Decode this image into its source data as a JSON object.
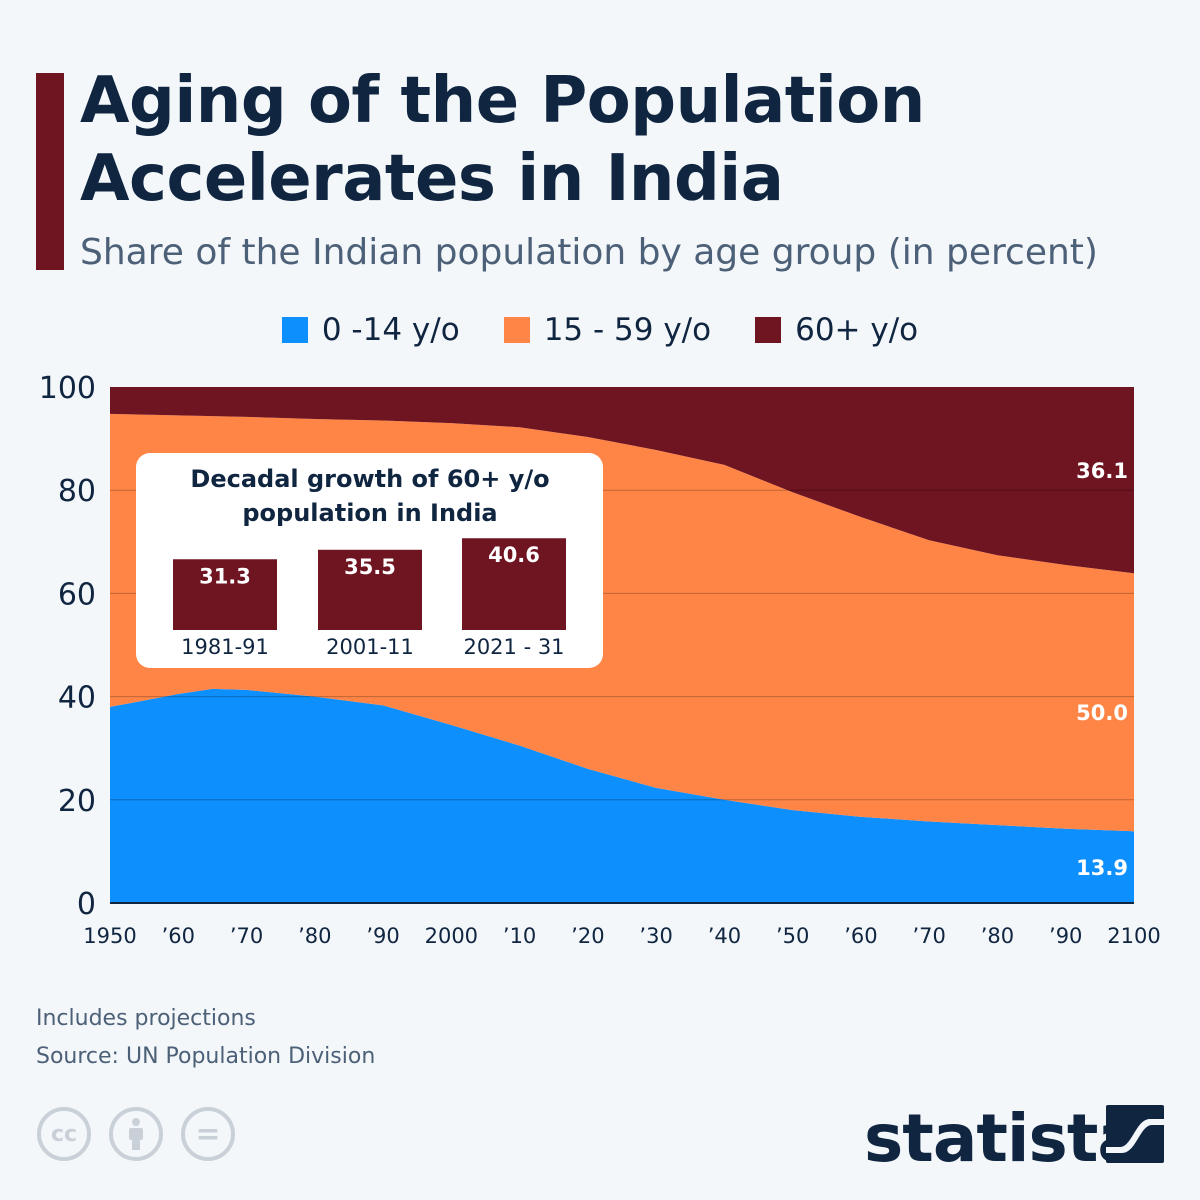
{
  "header": {
    "title": "Aging of the Population Accelerates in India",
    "subtitle": "Share of the Indian population by age group (in percent)"
  },
  "legend": [
    {
      "label": "0 -14 y/o",
      "color": "#0d8ffd"
    },
    {
      "label": "15 - 59 y/o",
      "color": "#ff8547"
    },
    {
      "label": "60+ y/o",
      "color": "#6f1421"
    }
  ],
  "chart_data": {
    "type": "area",
    "stacked": true,
    "title": "Aging of the Population Accelerates in India",
    "subtitle": "Share of the Indian population by age group (in percent)",
    "x": [
      1950,
      1960,
      1965,
      1970,
      1980,
      1990,
      2000,
      2010,
      2020,
      2030,
      2040,
      2050,
      2060,
      2070,
      2080,
      2090,
      2100
    ],
    "x_tick_values": [
      1950,
      1960,
      1970,
      1980,
      1990,
      2000,
      2010,
      2020,
      2030,
      2040,
      2050,
      2060,
      2070,
      2080,
      2090,
      2100
    ],
    "x_tick_labels": [
      "1950",
      "’60",
      "’70",
      "’80",
      "’90",
      "2000",
      "’10",
      "’20",
      "’30",
      "’40",
      "’50",
      "’60",
      "’70",
      "’80",
      "’90",
      "2100"
    ],
    "y_ticks": [
      0,
      20,
      40,
      60,
      80,
      100
    ],
    "ylim": [
      0,
      100
    ],
    "grid": true,
    "legend_position": "top",
    "series": [
      {
        "name": "0 -14 y/o",
        "color": "#0d8ffd",
        "values": [
          38.0,
          40.5,
          41.5,
          41.3,
          40.0,
          38.3,
          34.5,
          30.5,
          26.0,
          22.3,
          20.0,
          18.0,
          16.7,
          15.8,
          15.1,
          14.4,
          13.9
        ]
      },
      {
        "name": "15 - 59 y/o",
        "color": "#ff8547",
        "values": [
          56.8,
          54.0,
          52.85,
          52.9,
          53.8,
          55.2,
          58.5,
          61.7,
          64.3,
          65.5,
          64.9,
          61.6,
          58.1,
          54.5,
          52.3,
          51.1,
          50.0
        ]
      },
      {
        "name": "60+ y/o",
        "color": "#6f1421",
        "values": [
          5.2,
          5.5,
          5.65,
          5.8,
          6.2,
          6.5,
          7.0,
          7.8,
          9.7,
          12.2,
          15.1,
          20.4,
          25.2,
          29.7,
          32.6,
          34.5,
          36.1
        ]
      }
    ],
    "end_labels": [
      "13.9",
      "50.0",
      "36.1"
    ],
    "inset": {
      "type": "bar",
      "title": "Decadal growth of 60+ y/o population in India",
      "categories": [
        "1981-91",
        "2001-11",
        "2021 - 31"
      ],
      "values": [
        31.3,
        35.5,
        40.6
      ],
      "labels": [
        "31.3",
        "35.5",
        "40.6"
      ],
      "color": "#6f1421"
    }
  },
  "footer": {
    "note": "Includes projections",
    "source": "Source: UN Population Division",
    "cc_icons": [
      "cc-icon",
      "attribution-icon",
      "no-derivatives-icon"
    ],
    "cc_glyphs": [
      "cc",
      "",
      "="
    ],
    "logo": "statista"
  }
}
